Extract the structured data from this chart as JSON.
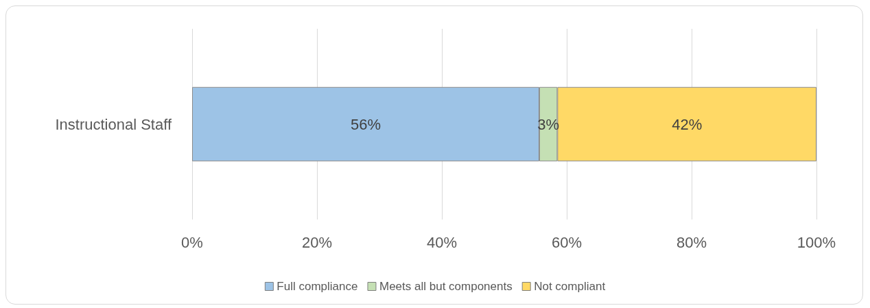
{
  "chart_data": {
    "type": "bar",
    "orientation": "horizontal",
    "stacked": true,
    "categories": [
      "Instructional Staff"
    ],
    "series": [
      {
        "name": "Full compliance",
        "color": "#9dc3e6",
        "values": [
          55.6
        ],
        "value_labels": [
          "56%"
        ]
      },
      {
        "name": "Meets all but components",
        "color": "#c5e0b4",
        "values": [
          2.9
        ],
        "value_labels": [
          "3%"
        ]
      },
      {
        "name": "Not compliant",
        "color": "#ffd966",
        "values": [
          41.5
        ],
        "value_labels": [
          "42%"
        ]
      }
    ],
    "xlim": [
      0,
      100
    ],
    "xticks": [
      {
        "value": 0,
        "label": "0%"
      },
      {
        "value": 20,
        "label": "20%"
      },
      {
        "value": 40,
        "label": "40%"
      },
      {
        "value": 60,
        "label": "60%"
      },
      {
        "value": 80,
        "label": "80%"
      },
      {
        "value": 100,
        "label": "100%"
      }
    ],
    "grid": "x",
    "legend": "bottom"
  }
}
